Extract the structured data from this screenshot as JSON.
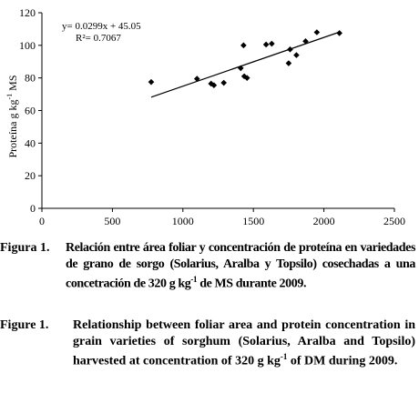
{
  "chart_data": {
    "type": "scatter",
    "title": "",
    "xlabel": "",
    "ylabel": "Proteína g kg-1 MS",
    "ylabel_parts": {
      "base": "Proteína g kg",
      "sup": "-1",
      "tail": " MS"
    },
    "xlim": [
      0,
      2500
    ],
    "ylim": [
      0,
      120
    ],
    "x_ticks": [
      0,
      500,
      1000,
      1500,
      2000,
      2500
    ],
    "y_ticks": [
      0,
      20,
      40,
      60,
      80,
      100,
      120
    ],
    "grid": false,
    "legend": "none",
    "points": [
      {
        "x": 775,
        "y": 77.5
      },
      {
        "x": 1100,
        "y": 79.5
      },
      {
        "x": 1200,
        "y": 76.5
      },
      {
        "x": 1220,
        "y": 75.5
      },
      {
        "x": 1290,
        "y": 77
      },
      {
        "x": 1410,
        "y": 86
      },
      {
        "x": 1430,
        "y": 100
      },
      {
        "x": 1435,
        "y": 81
      },
      {
        "x": 1455,
        "y": 80
      },
      {
        "x": 1590,
        "y": 100.5
      },
      {
        "x": 1630,
        "y": 101
      },
      {
        "x": 1750,
        "y": 89
      },
      {
        "x": 1760,
        "y": 97.5
      },
      {
        "x": 1805,
        "y": 94
      },
      {
        "x": 1870,
        "y": 102.5
      },
      {
        "x": 1950,
        "y": 108
      },
      {
        "x": 2110,
        "y": 107.5
      }
    ],
    "trendline": {
      "slope": 0.0299,
      "intercept": 45.05,
      "x_range": [
        775,
        2110
      ],
      "equation_label": "y= 0.0299x + 45.05",
      "r2_label": "R²= 0.7067"
    }
  },
  "captions": {
    "es_label": "Figura 1.",
    "es_text": "Relación entre área foliar y concentración de proteína en variedades de grano de sorgo (Solarius, Aralba y Topsilo) cosechadas a una concetración de 320 g kg-1 de MS durante 2009.",
    "en_label": "Figure 1.",
    "en_text": "Relationship between foliar area and protein concentration in grain varieties of sorghum (Solarius, Aralba and Topsilo) harvested at concentration of 320 g kg-1 of DM during 2009."
  }
}
